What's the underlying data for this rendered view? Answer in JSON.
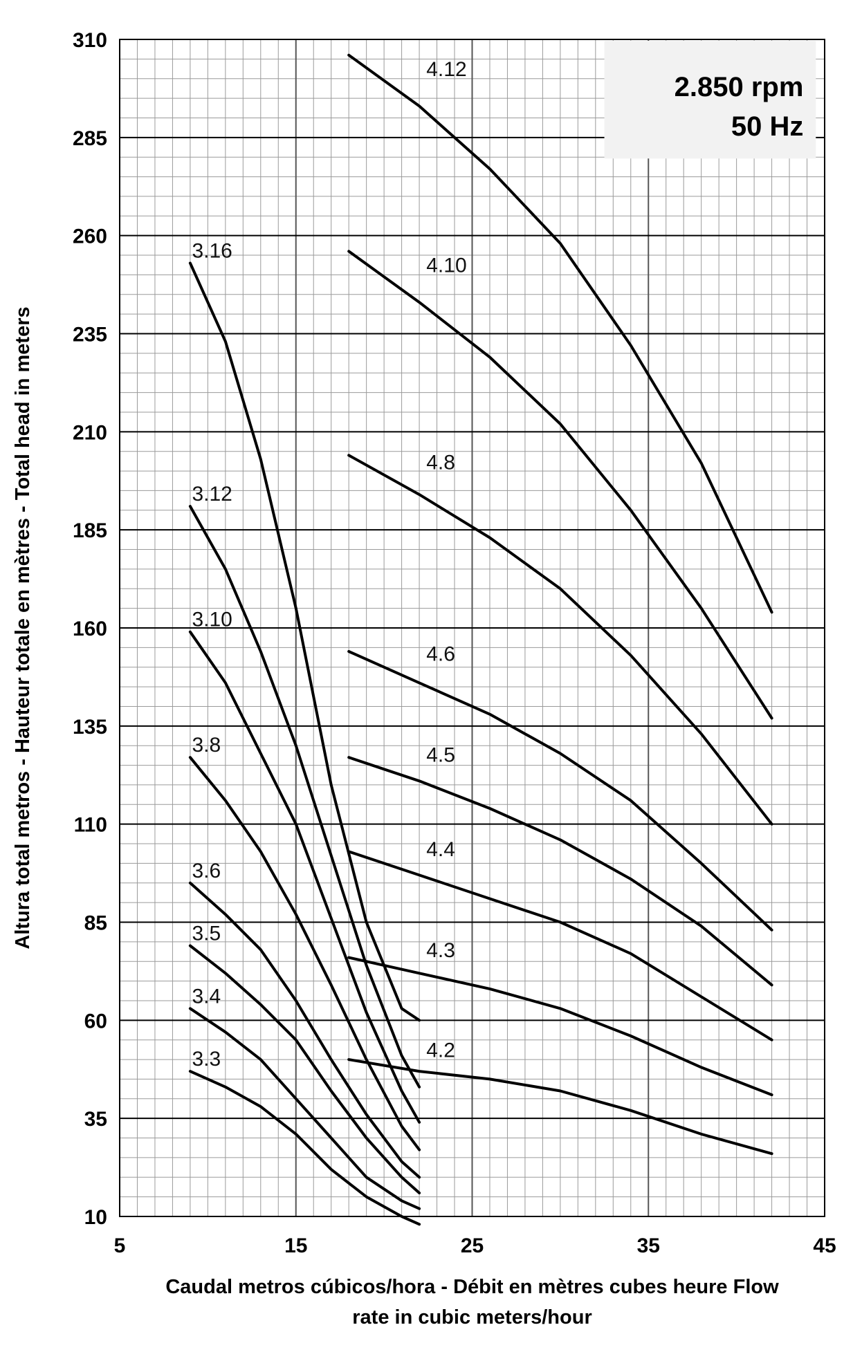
{
  "chart_data": {
    "type": "line",
    "title": "",
    "xlabel_lines": [
      "Caudal metros cúbicos/hora - Débit en mètres cubes heure Flow",
      "rate in cubic meters/hour"
    ],
    "ylabel": "Altura total metros - Hauteur totale en mètres - Total head in meters",
    "xlim": [
      5,
      45
    ],
    "ylim": [
      10,
      310
    ],
    "x_ticks": [
      5,
      15,
      25,
      35,
      45
    ],
    "y_ticks": [
      10,
      35,
      60,
      85,
      110,
      135,
      160,
      185,
      210,
      235,
      260,
      285,
      310
    ],
    "x_minor_step": 1,
    "y_minor_step": 5,
    "grid": true,
    "legend": "none",
    "info_box": {
      "line1": "2.850 rpm",
      "line2": "50 Hz",
      "position": "top-right"
    },
    "series": [
      {
        "name": "3.3",
        "x": [
          9,
          11,
          13,
          15,
          17,
          19,
          21,
          22
        ],
        "y": [
          47,
          43,
          38,
          31,
          22,
          15,
          10,
          8
        ]
      },
      {
        "name": "3.4",
        "x": [
          9,
          11,
          13,
          15,
          17,
          19,
          21,
          22
        ],
        "y": [
          63,
          57,
          50,
          40,
          30,
          20,
          14,
          12
        ]
      },
      {
        "name": "3.5",
        "x": [
          9,
          11,
          13,
          15,
          17,
          19,
          21,
          22
        ],
        "y": [
          79,
          72,
          64,
          55,
          42,
          30,
          20,
          16
        ]
      },
      {
        "name": "3.6",
        "x": [
          9,
          11,
          13,
          15,
          17,
          19,
          21,
          22
        ],
        "y": [
          95,
          87,
          78,
          65,
          50,
          36,
          24,
          20
        ]
      },
      {
        "name": "3.8",
        "x": [
          9,
          11,
          13,
          15,
          17,
          19,
          21,
          22
        ],
        "y": [
          127,
          116,
          103,
          87,
          69,
          50,
          33,
          27
        ]
      },
      {
        "name": "3.10",
        "x": [
          9,
          11,
          13,
          15,
          17,
          19,
          21,
          22
        ],
        "y": [
          159,
          146,
          128,
          110,
          86,
          62,
          42,
          34
        ]
      },
      {
        "name": "3.12",
        "x": [
          9,
          11,
          13,
          15,
          17,
          19,
          21,
          22
        ],
        "y": [
          191,
          175,
          154,
          130,
          102,
          74,
          51,
          43
        ]
      },
      {
        "name": "3.16",
        "x": [
          9,
          11,
          13,
          15,
          17,
          19,
          21,
          22
        ],
        "y": [
          253,
          233,
          203,
          165,
          120,
          85,
          63,
          60
        ]
      },
      {
        "name": "4.2",
        "x": [
          18,
          22,
          26,
          30,
          34,
          38,
          42
        ],
        "y": [
          50,
          47,
          45,
          42,
          37,
          31,
          26
        ]
      },
      {
        "name": "4.3",
        "x": [
          18,
          22,
          26,
          30,
          34,
          38,
          42
        ],
        "y": [
          76,
          72,
          68,
          63,
          56,
          48,
          41
        ]
      },
      {
        "name": "4.4",
        "x": [
          18,
          22,
          26,
          30,
          34,
          38,
          42
        ],
        "y": [
          103,
          97,
          91,
          85,
          77,
          66,
          55
        ]
      },
      {
        "name": "4.5",
        "x": [
          18,
          22,
          26,
          30,
          34,
          38,
          42
        ],
        "y": [
          127,
          121,
          114,
          106,
          96,
          84,
          69
        ]
      },
      {
        "name": "4.6",
        "x": [
          18,
          22,
          26,
          30,
          34,
          38,
          42
        ],
        "y": [
          154,
          146,
          138,
          128,
          116,
          100,
          83
        ]
      },
      {
        "name": "4.8",
        "x": [
          18,
          22,
          26,
          30,
          34,
          38,
          42
        ],
        "y": [
          204,
          194,
          183,
          170,
          153,
          133,
          110
        ]
      },
      {
        "name": "4.10",
        "x": [
          18,
          22,
          26,
          30,
          34,
          38,
          42
        ],
        "y": [
          256,
          243,
          229,
          212,
          190,
          165,
          137
        ]
      },
      {
        "name": "4.12",
        "x": [
          18,
          22,
          26,
          30,
          34,
          38,
          42
        ],
        "y": [
          306,
          293,
          277,
          258,
          232,
          202,
          164
        ]
      }
    ]
  }
}
